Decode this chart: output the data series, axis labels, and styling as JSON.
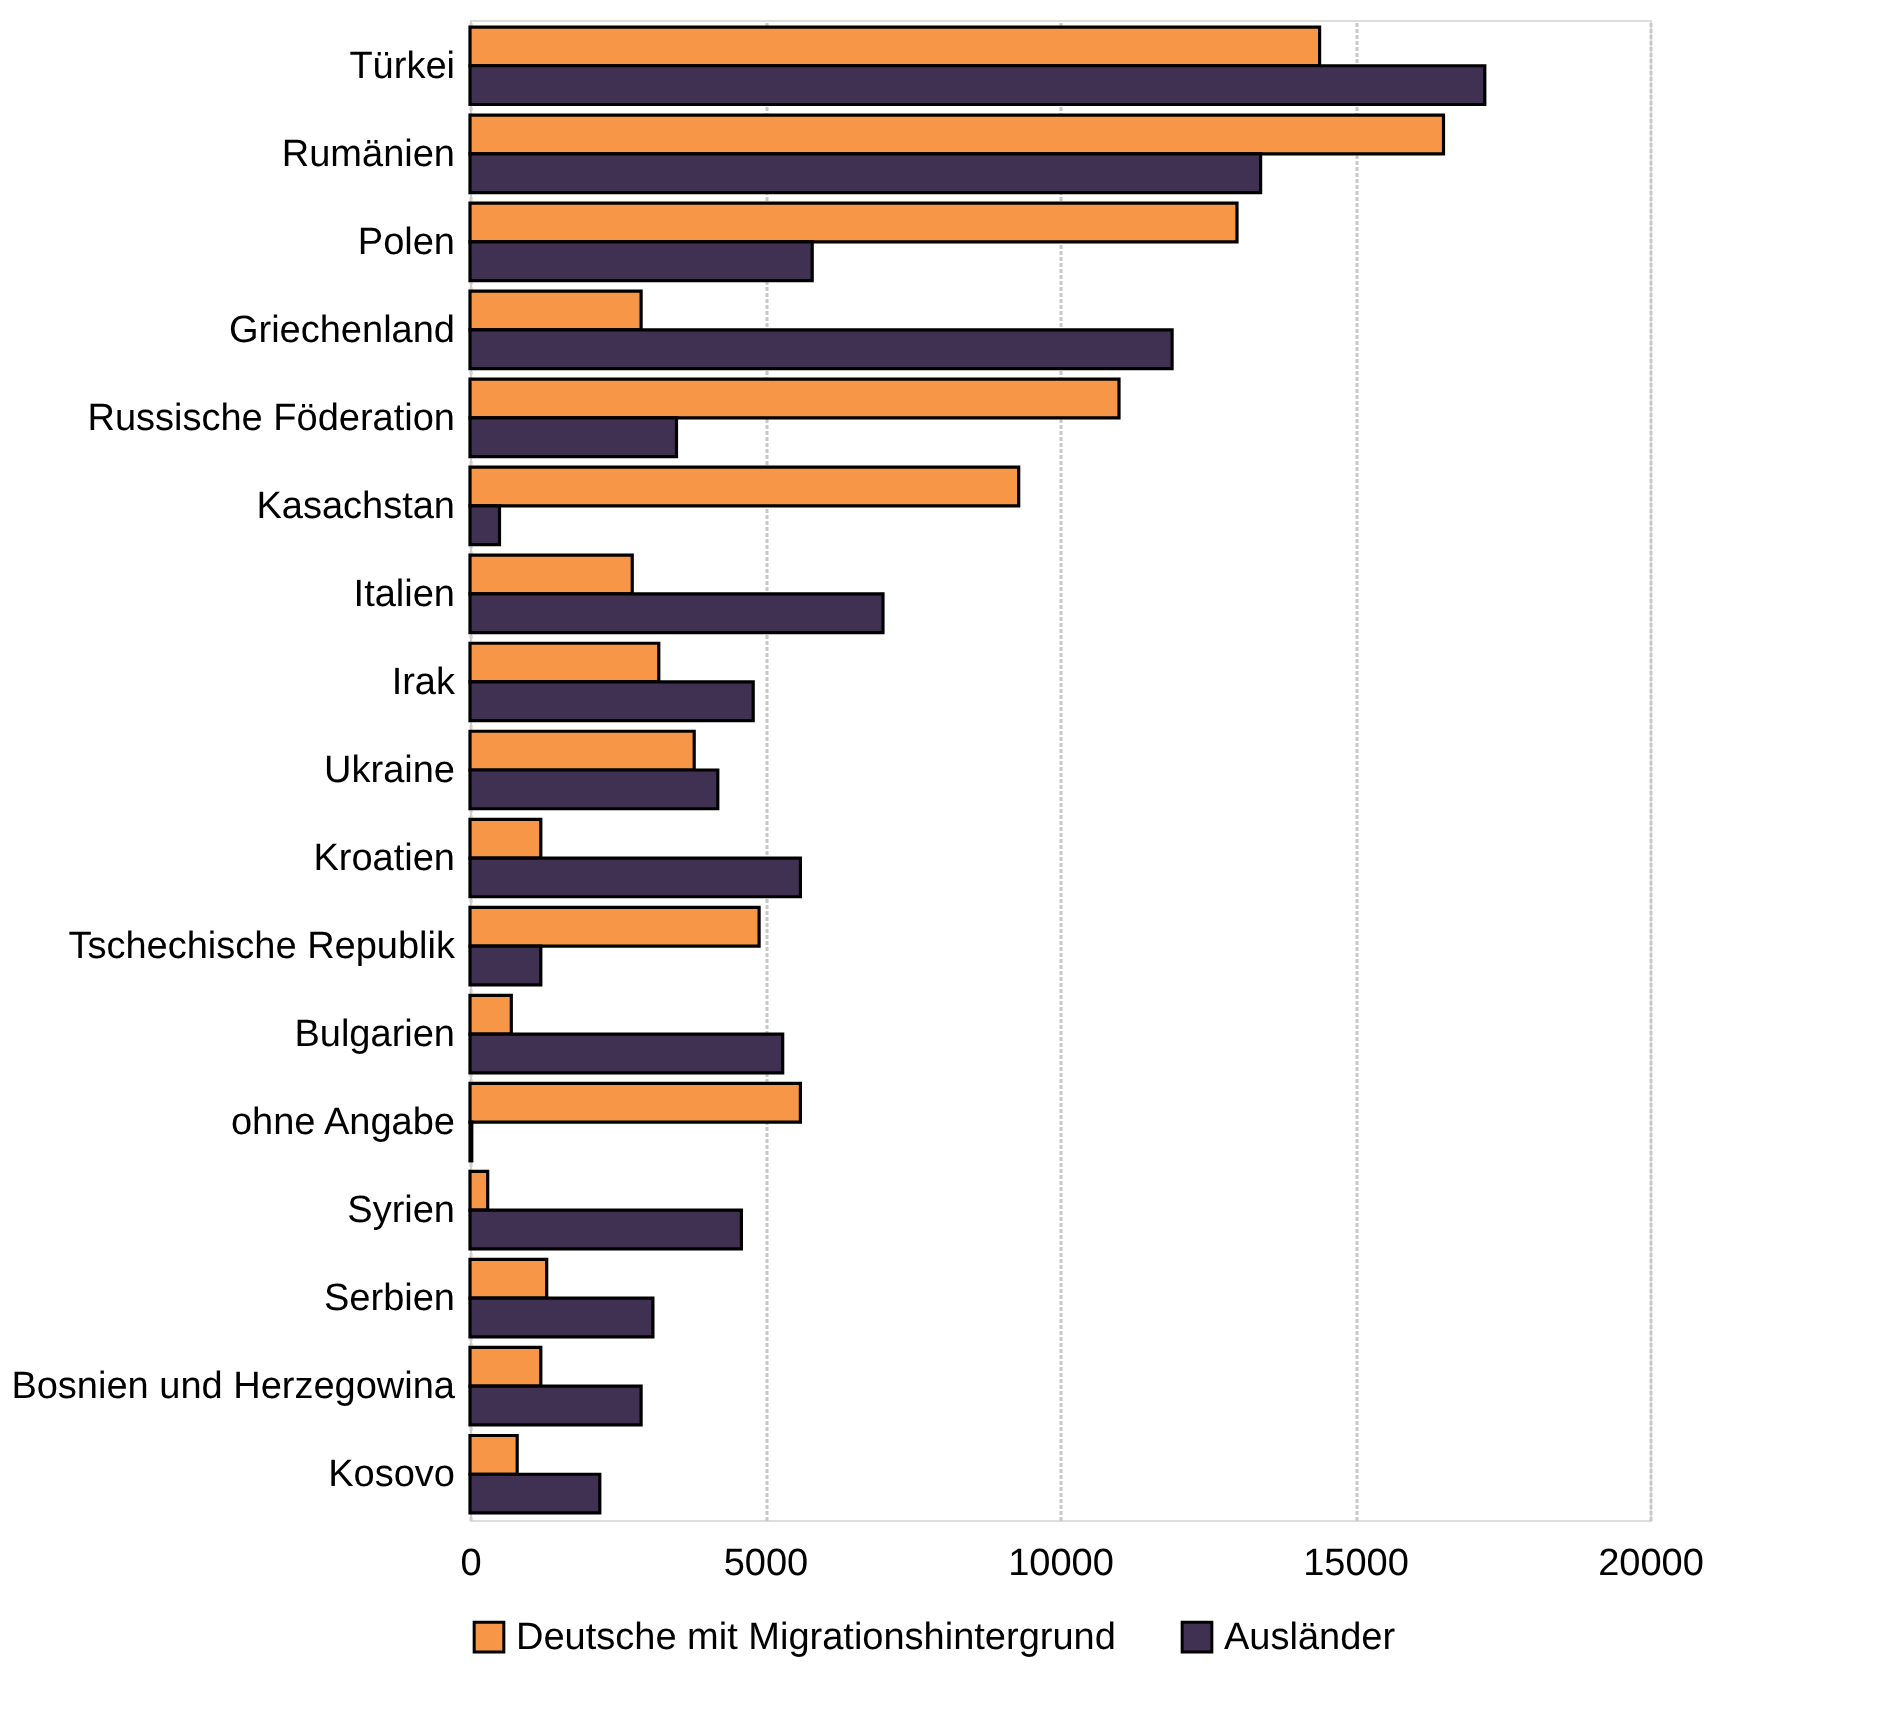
{
  "chart_data": {
    "type": "bar",
    "orientation": "horizontal",
    "categories": [
      "Türkei",
      "Rumänien",
      "Polen",
      "Griechenland",
      "Russische Föderation",
      "Kasachstan",
      "Italien",
      "Irak",
      "Ukraine",
      "Kroatien",
      "Tschechische Republik",
      "Bulgarien",
      "ohne Angabe",
      "Syrien",
      "Serbien",
      "Bosnien und Herzegowina",
      "Kosovo"
    ],
    "series": [
      {
        "name": "Deutsche mit Migrationshintergrund",
        "color": "#f79646",
        "values": [
          14400,
          16500,
          13000,
          2900,
          11000,
          9300,
          2750,
          3200,
          3800,
          1200,
          4900,
          700,
          5600,
          300,
          1300,
          1200,
          800
        ]
      },
      {
        "name": "Ausländer",
        "color": "#403152",
        "values": [
          17200,
          13400,
          5800,
          11900,
          3500,
          500,
          7000,
          4800,
          4200,
          5600,
          1200,
          5300,
          30,
          4600,
          3100,
          2900,
          2200
        ]
      }
    ],
    "xlim": [
      0,
      20000
    ],
    "xticks": [
      0,
      5000,
      10000,
      15000,
      20000
    ],
    "grid": "x",
    "legend": "bottom"
  }
}
